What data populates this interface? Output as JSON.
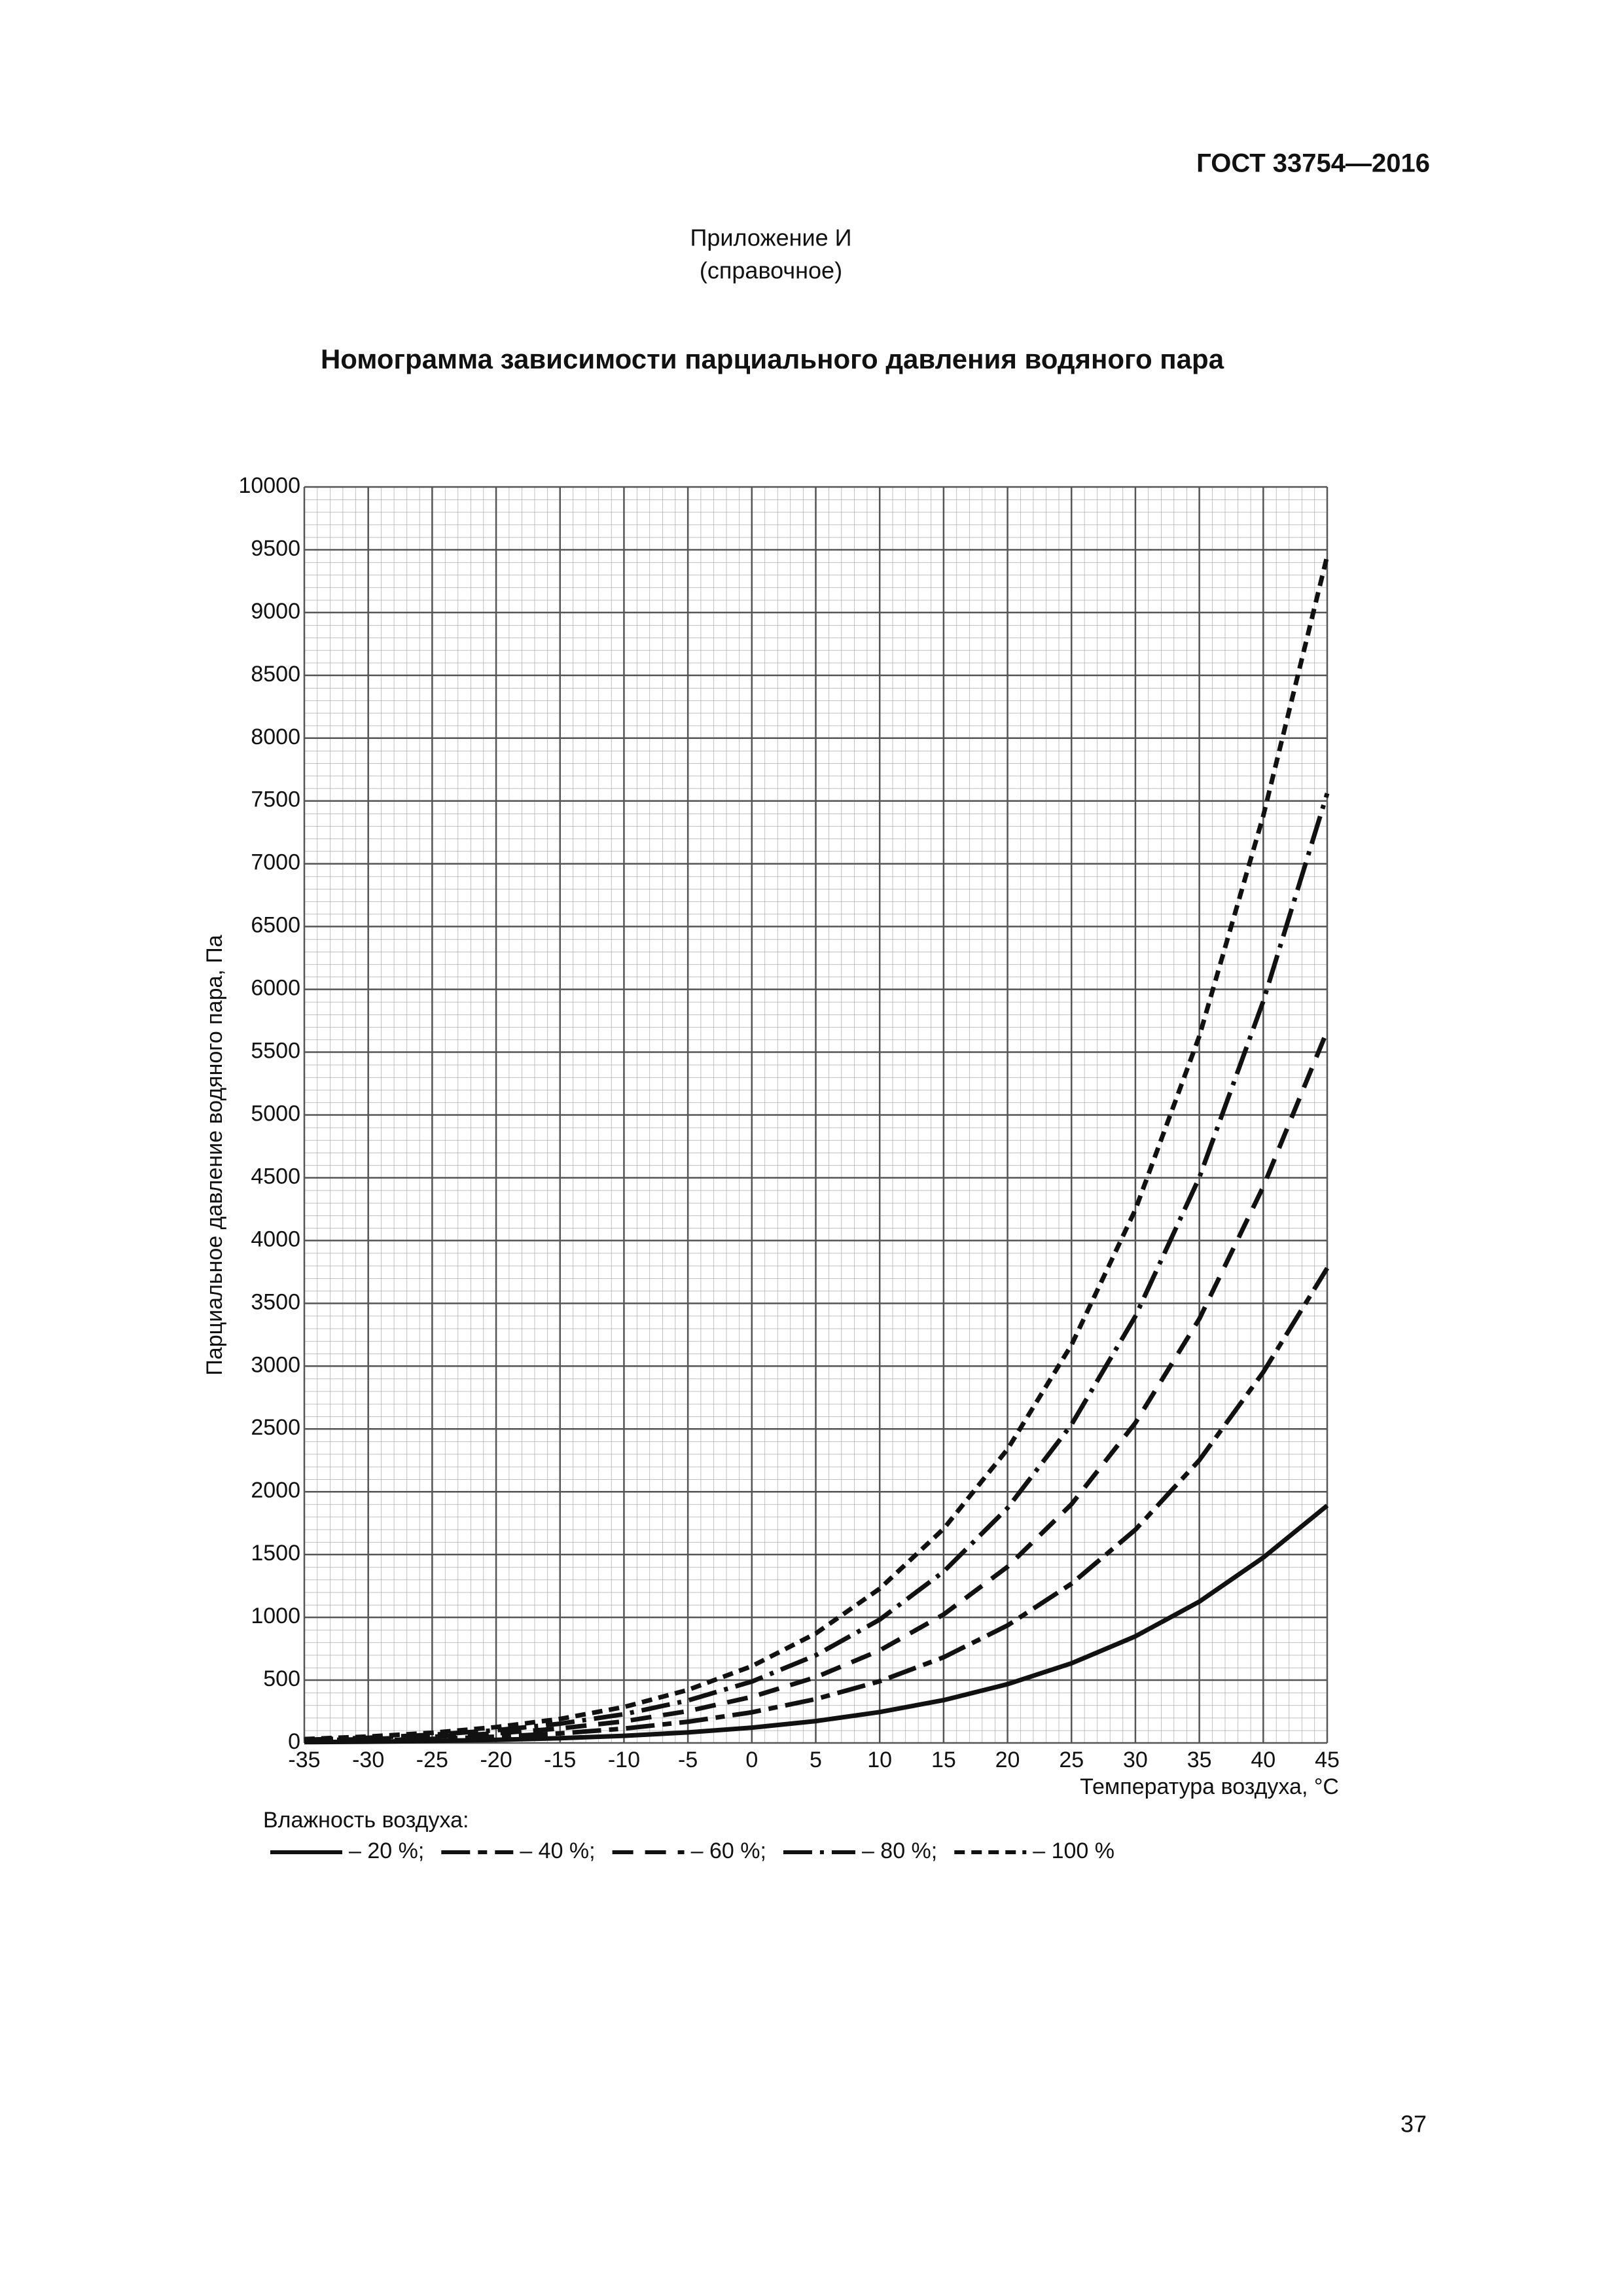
{
  "header": {
    "standard": "ГОСТ 33754—2016",
    "appendix": "Приложение И",
    "appendix_kind": "(справочное)",
    "title": "Номограмма зависимости парциального давления водяного пара"
  },
  "chart_data": {
    "type": "line",
    "x_label": "Температура воздуха, °С",
    "y_label": "Парциальное давление водяного пара, Па",
    "legend_title": "Влажность воздуха:",
    "x": [
      -35,
      -30,
      -25,
      -20,
      -15,
      -10,
      -5,
      0,
      5,
      10,
      15,
      20,
      25,
      30,
      35,
      40,
      45
    ],
    "series": [
      {
        "name": "– 20 %;",
        "color": "#111111",
        "dash": "none",
        "values": [
          6,
          10,
          16,
          25,
          38,
          57,
          84,
          122,
          174,
          246,
          341,
          468,
          634,
          849,
          1125,
          1476,
          1890
        ]
      },
      {
        "name": "– 40 %;",
        "color": "#111111",
        "dash": "44 12 14 12",
        "values": [
          12,
          20,
          32,
          50,
          76,
          114,
          169,
          244,
          349,
          491,
          682,
          936,
          1268,
          1698,
          2251,
          2952,
          3780
        ]
      },
      {
        "name": "– 60 %;",
        "color": "#111111",
        "dash": "32 18",
        "values": [
          19,
          31,
          49,
          76,
          115,
          172,
          253,
          367,
          523,
          737,
          1023,
          1403,
          1901,
          2548,
          3376,
          4429,
          5670
        ]
      },
      {
        "name": "– 80 %;",
        "color": "#111111",
        "dash": "44 12 6 12",
        "values": [
          25,
          41,
          65,
          101,
          153,
          229,
          338,
          489,
          698,
          982,
          1364,
          1871,
          2535,
          3397,
          4502,
          5905,
          7560
        ]
      },
      {
        "name": "– 100 %",
        "color": "#111111",
        "dash": "16 10",
        "values": [
          31,
          51,
          81,
          126,
          191,
          286,
          422,
          611,
          872,
          1228,
          1705,
          2339,
          3169,
          4246,
          5627,
          7381,
          9450
        ]
      }
    ],
    "xlim": [
      -35,
      45
    ],
    "xticks": [
      -35,
      -30,
      -25,
      -20,
      -15,
      -10,
      -5,
      0,
      5,
      10,
      15,
      20,
      25,
      30,
      35,
      40,
      45
    ],
    "ylim": [
      0,
      10000
    ],
    "yticks": [
      0,
      500,
      1000,
      1500,
      2000,
      2500,
      3000,
      3500,
      4000,
      4500,
      5000,
      5500,
      6000,
      6500,
      7000,
      7500,
      8000,
      8500,
      9000,
      9500,
      10000
    ],
    "grid": true
  },
  "footer": {
    "page_number": "37"
  }
}
